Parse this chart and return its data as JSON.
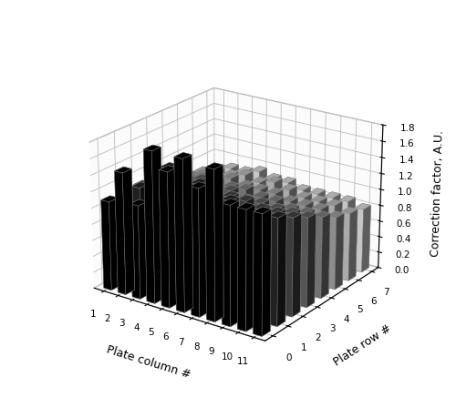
{
  "title": "",
  "xlabel": "Plate column #",
  "ylabel": "Plate row #",
  "zlabel": "Correction factor, A.U.",
  "xticks": [
    1,
    2,
    3,
    4,
    5,
    6,
    7,
    8,
    9,
    10,
    11
  ],
  "yticks": [
    0,
    1,
    2,
    3,
    4,
    5,
    6,
    7
  ],
  "zticks": [
    0.0,
    0.2,
    0.4,
    0.6,
    0.8,
    1.0,
    1.2,
    1.4,
    1.6,
    1.8
  ],
  "values": [
    [
      1.1,
      1.5,
      1.15,
      1.85,
      1.65,
      1.85,
      1.55,
      1.82,
      1.45,
      1.45,
      1.45
    ],
    [
      1.1,
      1.22,
      1.3,
      1.55,
      1.45,
      1.45,
      1.35,
      1.35,
      1.3,
      1.3,
      1.3
    ],
    [
      1.1,
      1.22,
      1.25,
      1.32,
      1.25,
      1.3,
      1.25,
      1.25,
      1.2,
      1.2,
      1.2
    ],
    [
      1.0,
      1.12,
      1.15,
      1.22,
      1.15,
      1.18,
      1.12,
      1.12,
      1.1,
      1.1,
      1.1
    ],
    [
      1.0,
      1.05,
      1.1,
      1.12,
      1.08,
      1.1,
      1.05,
      1.05,
      1.0,
      1.0,
      1.0
    ],
    [
      0.95,
      1.0,
      1.0,
      1.05,
      1.0,
      1.0,
      1.0,
      0.95,
      0.95,
      0.95,
      0.9
    ],
    [
      0.9,
      0.95,
      0.95,
      1.0,
      0.95,
      1.0,
      0.95,
      0.9,
      0.9,
      0.9,
      0.85
    ],
    [
      0.85,
      0.9,
      0.9,
      0.95,
      0.9,
      0.9,
      0.85,
      0.85,
      0.85,
      0.85,
      0.8
    ]
  ],
  "bar_colors_by_row": [
    "#000000",
    "#252525",
    "#444444",
    "#606060",
    "#808080",
    "#a0a0a0",
    "#c0c0c0",
    "#e0e0e0"
  ],
  "elev": 22,
  "azim": -55,
  "bar_width": 0.55,
  "bar_depth": 0.55,
  "figsize": [
    5.0,
    4.59
  ],
  "dpi": 100
}
